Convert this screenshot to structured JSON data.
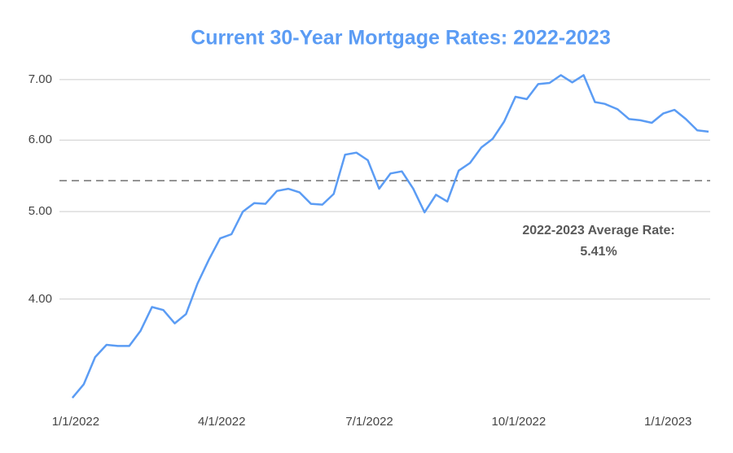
{
  "chart_data": {
    "type": "line",
    "title": "Current 30-Year Mortgage Rates: 2022-2023",
    "log_scale": true,
    "grid": true,
    "x": [
      "2021-12-30",
      "2022-01-06",
      "2022-01-13",
      "2022-01-20",
      "2022-01-27",
      "2022-02-03",
      "2022-02-10",
      "2022-02-17",
      "2022-02-24",
      "2022-03-03",
      "2022-03-10",
      "2022-03-17",
      "2022-03-24",
      "2022-03-31",
      "2022-04-07",
      "2022-04-14",
      "2022-04-21",
      "2022-04-28",
      "2022-05-05",
      "2022-05-12",
      "2022-05-19",
      "2022-05-26",
      "2022-06-02",
      "2022-06-09",
      "2022-06-16",
      "2022-06-23",
      "2022-06-30",
      "2022-07-07",
      "2022-07-14",
      "2022-07-21",
      "2022-07-28",
      "2022-08-04",
      "2022-08-11",
      "2022-08-18",
      "2022-08-25",
      "2022-09-01",
      "2022-09-08",
      "2022-09-15",
      "2022-09-22",
      "2022-09-29",
      "2022-10-06",
      "2022-10-13",
      "2022-10-20",
      "2022-10-27",
      "2022-11-03",
      "2022-11-10",
      "2022-11-17",
      "2022-11-23",
      "2022-12-01",
      "2022-12-08",
      "2022-12-15",
      "2022-12-22",
      "2022-12-29",
      "2023-01-05",
      "2023-01-12",
      "2023-01-19",
      "2023-01-26"
    ],
    "series": [
      {
        "color": "#5b9cf4",
        "values": [
          3.11,
          3.22,
          3.45,
          3.56,
          3.55,
          3.55,
          3.69,
          3.92,
          3.89,
          3.76,
          3.85,
          4.16,
          4.42,
          4.67,
          4.72,
          5.0,
          5.11,
          5.1,
          5.27,
          5.3,
          5.25,
          5.1,
          5.09,
          5.23,
          5.78,
          5.81,
          5.7,
          5.3,
          5.51,
          5.54,
          5.3,
          4.99,
          5.22,
          5.13,
          5.55,
          5.66,
          5.89,
          6.02,
          6.29,
          6.7,
          6.66,
          6.92,
          6.94,
          7.08,
          6.95,
          7.08,
          6.61,
          6.58,
          6.49,
          6.33,
          6.31,
          6.27,
          6.42,
          6.48,
          6.33,
          6.15,
          6.13
        ]
      }
    ],
    "xlim": [
      "2021-12-22",
      "2023-01-27"
    ],
    "xticks": [
      {
        "value": "2022-01-01",
        "label": "1/1/2022"
      },
      {
        "value": "2022-04-01",
        "label": "4/1/2022"
      },
      {
        "value": "2022-07-01",
        "label": "7/1/2022"
      },
      {
        "value": "2022-10-01",
        "label": "10/1/2022"
      },
      {
        "value": "2023-01-01",
        "label": "1/1/2023"
      }
    ],
    "ylim": [
      3.06,
      7.34
    ],
    "yticks": [
      {
        "value": 4,
        "label": "4.00"
      },
      {
        "value": 5,
        "label": "5.00"
      },
      {
        "value": 6,
        "label": "6.00"
      },
      {
        "value": 7,
        "label": "7.00"
      }
    ],
    "average_line": {
      "value": 5.41,
      "color": "#555555",
      "label_lines": [
        "2022-2023 Average Rate:",
        "5.41%"
      ]
    }
  }
}
